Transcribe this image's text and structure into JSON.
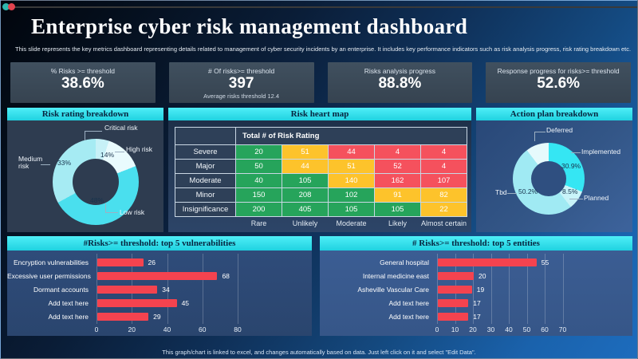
{
  "slide": {
    "title": "Enterprise cyber risk management dashboard",
    "subtitle": "This slide represents the key metrics dashboard representing details related to management of cyber security incidents by an enterprise. It includes key performance indicators such as risk analysis progress, risk rating breakdown etc.",
    "footer": "This graph/chart is linked to excel, and changes automatically based on data. Just left click on it and select \"Edit Data\"."
  },
  "kpis": [
    {
      "label": "% Risks >= threshold",
      "value": "38.6%"
    },
    {
      "label": "# Of risks>= threshold",
      "value": "397",
      "sub": "Average risks threshold 12.4"
    },
    {
      "label": "Risks analysis progress",
      "value": "88.8%"
    },
    {
      "label": "Response progress for risks>= threshold",
      "value": "52.6%"
    }
  ],
  "section_headers": {
    "risk_rating": "Risk rating breakdown",
    "heat_map": "Risk heart map",
    "action_plan": "Action plan breakdown",
    "top_vulnerabilities": "#Risks>= threshold: top 5 vulnerabilities",
    "top_entities": "# Risks>= threshold: top 5 entities"
  },
  "colors": {
    "header_cyan": "#35e7f2",
    "bar_red": "#f4434f",
    "heat_green": "#26a45b",
    "heat_yellow": "#fdc32b",
    "heat_red": "#f5515d"
  },
  "chart_data": [
    {
      "id": "risk_rating_donut",
      "type": "pie",
      "title": "Risk rating breakdown",
      "segments": [
        {
          "label": "Critical risk",
          "value": 5,
          "display": "",
          "color": "#c7f1f7"
        },
        {
          "label": "High risk",
          "value": 14,
          "display": "14%",
          "color": "#e9fbfd"
        },
        {
          "label": "Low risk",
          "value": 48,
          "display": "48%",
          "color": "#4adfee"
        },
        {
          "label": "Medium risk",
          "value": 33,
          "display": "33%",
          "color": "#a6ebf3"
        }
      ]
    },
    {
      "id": "risk_heat_map",
      "type": "heatmap",
      "title": "Risk heart map",
      "corner_header": "Total # of Risk Rating",
      "row_labels": [
        "Severe",
        "Major",
        "Moderate",
        "Minor",
        "Insignificance"
      ],
      "col_labels": [
        "Rare",
        "Unlikely",
        "Moderate",
        "Likely",
        "Almost certain"
      ],
      "values": [
        [
          20,
          51,
          44,
          4,
          4
        ],
        [
          50,
          44,
          51,
          52,
          4
        ],
        [
          40,
          105,
          140,
          162,
          107
        ],
        [
          150,
          208,
          102,
          91,
          82
        ],
        [
          200,
          405,
          105,
          105,
          22
        ]
      ],
      "cell_colors": [
        [
          "green",
          "yellow",
          "red",
          "red",
          "red"
        ],
        [
          "green",
          "yellow",
          "yellow",
          "red",
          "red"
        ],
        [
          "green",
          "green",
          "yellow",
          "red",
          "red"
        ],
        [
          "green",
          "green",
          "green",
          "yellow",
          "yellow"
        ],
        [
          "green",
          "green",
          "green",
          "green",
          "yellow"
        ]
      ]
    },
    {
      "id": "action_plan_donut",
      "type": "pie",
      "title": "Action plan breakdown",
      "segments": [
        {
          "label": "Implemented",
          "value": 30.9,
          "display": "30.9%",
          "color": "#35e6f3"
        },
        {
          "label": "Planned",
          "value": 8.5,
          "display": "8.5%",
          "color": "#c9f4f9"
        },
        {
          "label": "Tbd",
          "value": 50.2,
          "display": "50.2%",
          "color": "#a0eaf3"
        },
        {
          "label": "Deferred",
          "value": 10.4,
          "display": "",
          "color": "#e6fafc"
        }
      ]
    },
    {
      "id": "top_vulnerabilities_bar",
      "type": "bar",
      "title": "#Risks>= threshold: top 5 vulnerabilities",
      "categories": [
        "Encryption vulnerabilities",
        "Excessive user permissions",
        "Dormant accounts",
        "Add text here",
        "Add text here"
      ],
      "values": [
        26,
        68,
        34,
        45,
        29
      ],
      "xticks": [
        0,
        20,
        40,
        60,
        80
      ],
      "xlim": [
        0,
        100
      ]
    },
    {
      "id": "top_entities_bar",
      "type": "bar",
      "title": "# Risks>= threshold: top 5 entities",
      "categories": [
        "General hospital",
        "Internal medicine east",
        "Asheville Vascular Care",
        "Add text here",
        "Add text here"
      ],
      "values": [
        55,
        20,
        19,
        17,
        17
      ],
      "xticks": [
        0,
        10,
        20,
        30,
        40,
        50,
        60,
        70
      ],
      "xlim": [
        0,
        80
      ]
    }
  ]
}
